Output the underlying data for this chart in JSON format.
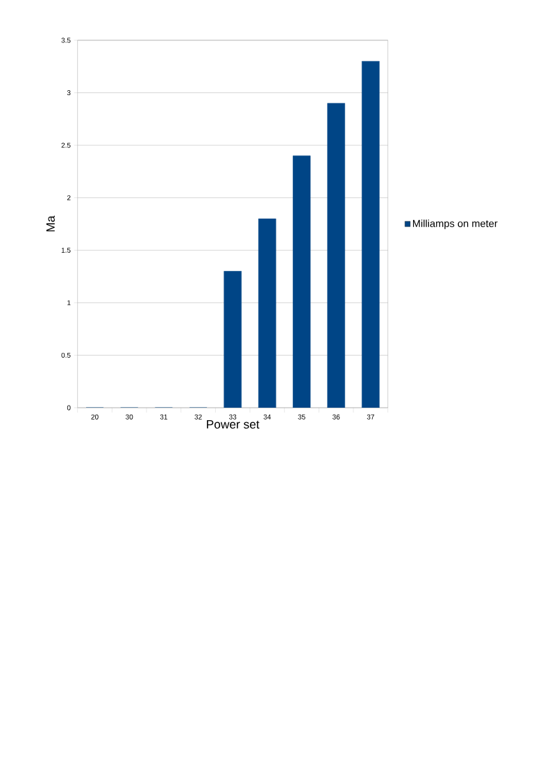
{
  "chart_data": {
    "type": "bar",
    "xlabel": "Power set",
    "ylabel": "Ma",
    "categories": [
      "20",
      "30",
      "31",
      "32",
      "33",
      "34",
      "35",
      "36",
      "37"
    ],
    "series": [
      {
        "name": "Milliamps on meter",
        "color": "#004586",
        "values": [
          0,
          0,
          0,
          0,
          1.3,
          1.8,
          2.4,
          2.9,
          3.3
        ]
      }
    ],
    "ylim": [
      0,
      3.5
    ],
    "yticks": [
      0,
      0.5,
      1,
      1.5,
      2,
      2.5,
      3,
      3.5
    ],
    "grid": "y",
    "legend": "right"
  }
}
